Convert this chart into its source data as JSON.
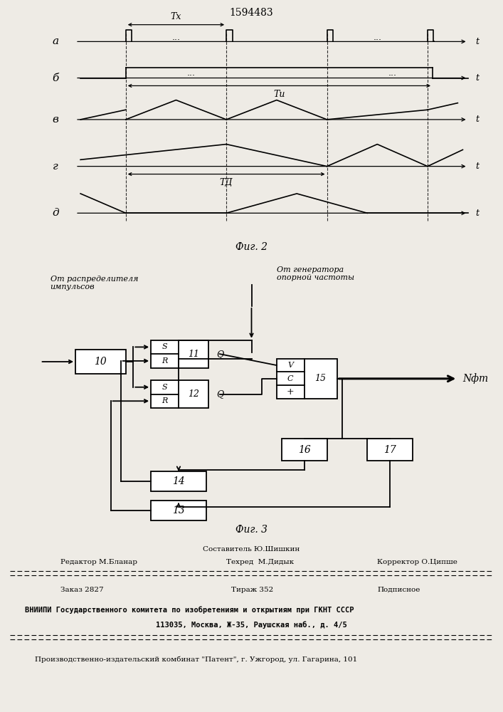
{
  "patent_number": "1594483",
  "bg_color": "#eeebe5",
  "fig2_caption": "Фиг. 2",
  "fig3_caption": "Фиг. 3",
  "waveform_labels": [
    "а",
    "б",
    "в",
    "г",
    "д"
  ],
  "label_Tx": "Tх",
  "label_Tu": "Tи",
  "label_T0": "TД",
  "label_t": "t",
  "nft_label": "Nфт",
  "from_dist": "От распределителя\nимпульсов",
  "from_gen": "От генератора\nопорной частоты",
  "footer_line1_left": "Редактор М.Бланар",
  "footer_line1_center1": "Составитель Ю.Шишкин",
  "footer_line1_center2": "Техред  М.Дидык",
  "footer_line1_right": "Корректор О.Ципше",
  "footer_line2_left": "Заказ 2827",
  "footer_line2_center": "Тираж 352",
  "footer_line2_right": "Подписное",
  "footer_line3": "ВНИИПИ Государственного комитета по изобретениям и открытиям при ГКНТ СССР",
  "footer_line4": "113035, Москва, Ж-35, Раушская наб., д. 4/5",
  "footer_line5": "Производственно-издательский комбинат \"Патент\", г. Ужгород, ул. Гагарина, 101"
}
